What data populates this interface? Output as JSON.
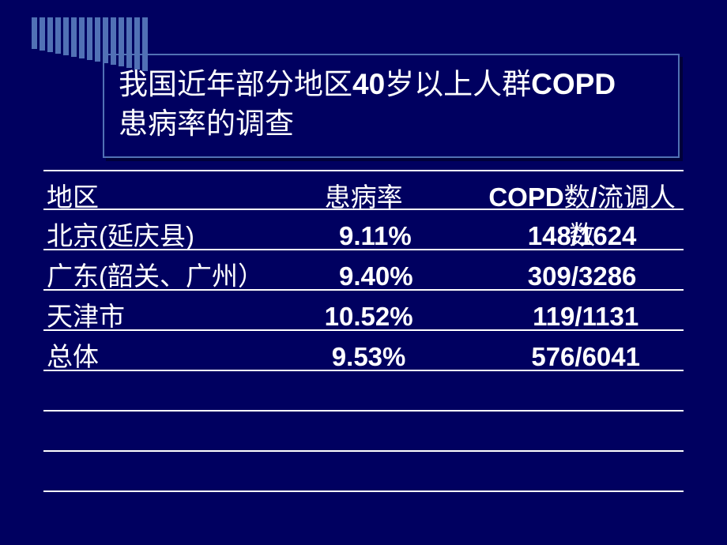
{
  "slide": {
    "background_color": "#000060",
    "stripe_color": "#5171b5",
    "title_border_color": "#5171b5",
    "text_color": "#ffffff",
    "title_line1_part1": "我国近年部分地区",
    "title_line1_part2": "40",
    "title_line1_part3": "岁以上人群",
    "title_line1_part4": "COPD",
    "title_line2": "患病率的调查",
    "table": {
      "headers": {
        "region": "地区",
        "rate": "患病率",
        "count_prefix": "COPD",
        "count_mid": "数",
        "count_slash": "/",
        "count_suffix": "流调人数"
      },
      "rows": [
        {
          "region": "北京(延庆县)",
          "rate": "9.11%",
          "count": "148/1624"
        },
        {
          "region": "广东(韶关、广州）",
          "rate": "9.40%",
          "count": "309/3286"
        },
        {
          "region": "天津市",
          "rate": "10.52%",
          "count": "119/1131"
        },
        {
          "region": "总体",
          "rate": "9.53%",
          "count": "576/6041"
        }
      ]
    },
    "stripe_heights": [
      40,
      42,
      44,
      46,
      48,
      50,
      52,
      54,
      56,
      58,
      60,
      62,
      64,
      66,
      68
    ]
  }
}
